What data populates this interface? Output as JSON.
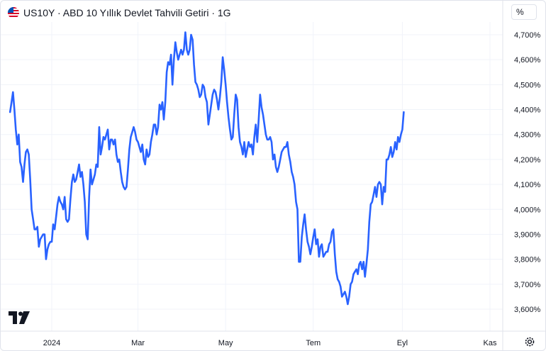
{
  "header": {
    "title": "US10Y · ABD 10 Yıllık Devlet Tahvili Getiri · 1G",
    "unit_label": "%"
  },
  "colors": {
    "line": "#2962ff",
    "grid": "#f0f3fa",
    "axis_text": "#131722"
  },
  "icons": {
    "flag": "us-flag-icon",
    "logo": "tradingview-logo-icon",
    "settings": "gear-icon"
  },
  "chart_data": {
    "type": "line",
    "title": "US10Y · ABD 10 Yıllık Devlet Tahvili Getiri · 1G",
    "ylabel": "%",
    "ylim": [
      3.55,
      4.75
    ],
    "y_ticks": [
      "4,700%",
      "4,600%",
      "4,500%",
      "4,400%",
      "4,300%",
      "4,200%",
      "4,100%",
      "4,000%",
      "3,900%",
      "3,800%",
      "3,700%",
      "3,600%"
    ],
    "x_ticks": [
      {
        "label": "2024",
        "day": 0
      },
      {
        "label": "Mar",
        "day": 60
      },
      {
        "label": "May",
        "day": 121
      },
      {
        "label": "Tem",
        "day": 182
      },
      {
        "label": "Eyl",
        "day": 244
      },
      {
        "label": "Kas",
        "day": 305
      }
    ],
    "grid": true,
    "series": [
      {
        "values": [
          [
            -29,
            4.39
          ],
          [
            -28,
            4.43
          ],
          [
            -27,
            4.47
          ],
          [
            -26,
            4.4
          ],
          [
            -25,
            4.32
          ],
          [
            -24,
            4.26
          ],
          [
            -23,
            4.3
          ],
          [
            -22,
            4.19
          ],
          [
            -21,
            4.17
          ],
          [
            -20,
            4.11
          ],
          [
            -19,
            4.18
          ],
          [
            -18,
            4.23
          ],
          [
            -17,
            4.24
          ],
          [
            -16,
            4.22
          ],
          [
            -15,
            4.12
          ],
          [
            -14,
            4.0
          ],
          [
            -13,
            3.96
          ],
          [
            -12,
            3.92
          ],
          [
            -11,
            3.92
          ],
          [
            -10,
            3.93
          ],
          [
            -9,
            3.85
          ],
          [
            -8,
            3.88
          ],
          [
            -7,
            3.89
          ],
          [
            -6,
            3.9
          ],
          [
            -5,
            3.9
          ],
          [
            -4,
            3.8
          ],
          [
            -3,
            3.84
          ],
          [
            -2,
            3.86
          ],
          [
            -1,
            3.87
          ],
          [
            0,
            3.87
          ],
          [
            1,
            3.94
          ],
          [
            2,
            3.92
          ],
          [
            3,
            3.97
          ],
          [
            4,
            4.02
          ],
          [
            5,
            4.05
          ],
          [
            6,
            4.03
          ],
          [
            7,
            4.02
          ],
          [
            8,
            4.0
          ],
          [
            9,
            4.05
          ],
          [
            10,
            3.96
          ],
          [
            11,
            3.95
          ],
          [
            12,
            3.96
          ],
          [
            13,
            4.04
          ],
          [
            14,
            4.11
          ],
          [
            15,
            4.14
          ],
          [
            16,
            4.11
          ],
          [
            17,
            4.12
          ],
          [
            18,
            4.15
          ],
          [
            19,
            4.18
          ],
          [
            20,
            4.13
          ],
          [
            21,
            4.15
          ],
          [
            22,
            4.1
          ],
          [
            23,
            4.03
          ],
          [
            24,
            3.9
          ],
          [
            25,
            3.88
          ],
          [
            26,
            4.05
          ],
          [
            27,
            4.16
          ],
          [
            28,
            4.1
          ],
          [
            29,
            4.12
          ],
          [
            30,
            4.14
          ],
          [
            31,
            4.18
          ],
          [
            32,
            4.17
          ],
          [
            33,
            4.33
          ],
          [
            34,
            4.22
          ],
          [
            35,
            4.25
          ],
          [
            36,
            4.29
          ],
          [
            37,
            4.28
          ],
          [
            38,
            4.3
          ],
          [
            39,
            4.32
          ],
          [
            40,
            4.24
          ],
          [
            41,
            4.28
          ],
          [
            42,
            4.28
          ],
          [
            43,
            4.26
          ],
          [
            44,
            4.28
          ],
          [
            45,
            4.22
          ],
          [
            46,
            4.19
          ],
          [
            47,
            4.2
          ],
          [
            48,
            4.15
          ],
          [
            49,
            4.11
          ],
          [
            50,
            4.09
          ],
          [
            51,
            4.08
          ],
          [
            52,
            4.09
          ],
          [
            53,
            4.16
          ],
          [
            54,
            4.24
          ],
          [
            55,
            4.29
          ],
          [
            56,
            4.31
          ],
          [
            57,
            4.33
          ],
          [
            58,
            4.31
          ],
          [
            59,
            4.28
          ],
          [
            60,
            4.27
          ],
          [
            61,
            4.25
          ],
          [
            62,
            4.23
          ],
          [
            63,
            4.26
          ],
          [
            64,
            4.2
          ],
          [
            65,
            4.18
          ],
          [
            66,
            4.24
          ],
          [
            67,
            4.21
          ],
          [
            68,
            4.22
          ],
          [
            69,
            4.27
          ],
          [
            70,
            4.3
          ],
          [
            71,
            4.34
          ],
          [
            72,
            4.34
          ],
          [
            73,
            4.3
          ],
          [
            74,
            4.33
          ],
          [
            75,
            4.42
          ],
          [
            76,
            4.4
          ],
          [
            77,
            4.43
          ],
          [
            78,
            4.36
          ],
          [
            79,
            4.43
          ],
          [
            80,
            4.55
          ],
          [
            81,
            4.59
          ],
          [
            82,
            4.58
          ],
          [
            83,
            4.62
          ],
          [
            84,
            4.5
          ],
          [
            85,
            4.6
          ],
          [
            86,
            4.67
          ],
          [
            87,
            4.63
          ],
          [
            88,
            4.6
          ],
          [
            89,
            4.62
          ],
          [
            90,
            4.64
          ],
          [
            91,
            4.62
          ],
          [
            92,
            4.64
          ],
          [
            93,
            4.71
          ],
          [
            94,
            4.64
          ],
          [
            95,
            4.62
          ],
          [
            96,
            4.64
          ],
          [
            97,
            4.7
          ],
          [
            98,
            4.68
          ],
          [
            99,
            4.58
          ],
          [
            100,
            4.51
          ],
          [
            101,
            4.5
          ],
          [
            102,
            4.48
          ],
          [
            103,
            4.45
          ],
          [
            104,
            4.46
          ],
          [
            105,
            4.5
          ],
          [
            106,
            4.49
          ],
          [
            107,
            4.45
          ],
          [
            108,
            4.43
          ],
          [
            109,
            4.34
          ],
          [
            110,
            4.38
          ],
          [
            111,
            4.42
          ],
          [
            112,
            4.46
          ],
          [
            113,
            4.48
          ],
          [
            114,
            4.47
          ],
          [
            115,
            4.44
          ],
          [
            116,
            4.4
          ],
          [
            117,
            4.45
          ],
          [
            118,
            4.51
          ],
          [
            119,
            4.61
          ],
          [
            120,
            4.56
          ],
          [
            121,
            4.5
          ],
          [
            122,
            4.43
          ],
          [
            123,
            4.37
          ],
          [
            124,
            4.32
          ],
          [
            125,
            4.28
          ],
          [
            126,
            4.29
          ],
          [
            127,
            4.38
          ],
          [
            128,
            4.46
          ],
          [
            129,
            4.44
          ],
          [
            130,
            4.33
          ],
          [
            131,
            4.27
          ],
          [
            132,
            4.25
          ],
          [
            133,
            4.22
          ],
          [
            134,
            4.27
          ],
          [
            135,
            4.21
          ],
          [
            136,
            4.24
          ],
          [
            137,
            4.27
          ],
          [
            138,
            4.25
          ],
          [
            139,
            4.26
          ],
          [
            140,
            4.22
          ],
          [
            141,
            4.29
          ],
          [
            142,
            4.34
          ],
          [
            143,
            4.27
          ],
          [
            144,
            4.36
          ],
          [
            145,
            4.46
          ],
          [
            146,
            4.41
          ],
          [
            147,
            4.38
          ],
          [
            148,
            4.34
          ],
          [
            149,
            4.3
          ],
          [
            150,
            4.28
          ],
          [
            151,
            4.28
          ],
          [
            152,
            4.29
          ],
          [
            153,
            4.27
          ],
          [
            154,
            4.2
          ],
          [
            155,
            4.22
          ],
          [
            156,
            4.17
          ],
          [
            157,
            4.15
          ],
          [
            158,
            4.17
          ],
          [
            159,
            4.2
          ],
          [
            160,
            4.23
          ],
          [
            161,
            4.24
          ],
          [
            162,
            4.25
          ],
          [
            163,
            4.25
          ],
          [
            164,
            4.27
          ],
          [
            165,
            4.22
          ],
          [
            166,
            4.19
          ],
          [
            167,
            4.15
          ],
          [
            168,
            4.13
          ],
          [
            169,
            4.1
          ],
          [
            170,
            4.03
          ],
          [
            171,
            4.0
          ],
          [
            172,
            3.79
          ],
          [
            173,
            3.79
          ],
          [
            174,
            3.89
          ],
          [
            175,
            3.94
          ],
          [
            176,
            3.98
          ],
          [
            177,
            3.92
          ],
          [
            178,
            3.87
          ],
          [
            179,
            3.85
          ],
          [
            180,
            3.82
          ],
          [
            181,
            3.85
          ],
          [
            182,
            3.89
          ],
          [
            183,
            3.92
          ],
          [
            184,
            3.86
          ],
          [
            185,
            3.88
          ],
          [
            186,
            3.81
          ],
          [
            187,
            3.85
          ],
          [
            188,
            3.86
          ],
          [
            189,
            3.81
          ],
          [
            190,
            3.82
          ],
          [
            191,
            3.83
          ],
          [
            192,
            3.83
          ],
          [
            193,
            3.86
          ],
          [
            194,
            3.87
          ],
          [
            195,
            3.91
          ],
          [
            196,
            3.92
          ],
          [
            197,
            3.82
          ],
          [
            198,
            3.75
          ],
          [
            199,
            3.72
          ],
          [
            200,
            3.71
          ],
          [
            201,
            3.69
          ],
          [
            202,
            3.65
          ],
          [
            203,
            3.66
          ],
          [
            204,
            3.67
          ],
          [
            205,
            3.65
          ],
          [
            206,
            3.62
          ],
          [
            207,
            3.65
          ],
          [
            208,
            3.7
          ],
          [
            209,
            3.71
          ],
          [
            210,
            3.74
          ],
          [
            211,
            3.75
          ],
          [
            212,
            3.76
          ],
          [
            213,
            3.74
          ],
          [
            214,
            3.78
          ],
          [
            215,
            3.79
          ],
          [
            216,
            3.76
          ],
          [
            217,
            3.79
          ],
          [
            218,
            3.73
          ],
          [
            219,
            3.78
          ],
          [
            220,
            3.84
          ],
          [
            221,
            3.95
          ],
          [
            222,
            4.02
          ],
          [
            223,
            4.03
          ],
          [
            224,
            4.06
          ],
          [
            225,
            4.09
          ],
          [
            226,
            4.05
          ],
          [
            227,
            4.1
          ],
          [
            228,
            4.11
          ],
          [
            229,
            4.1
          ],
          [
            230,
            4.02
          ],
          [
            231,
            4.09
          ],
          [
            232,
            4.07
          ],
          [
            233,
            4.2
          ],
          [
            234,
            4.2
          ],
          [
            235,
            4.22
          ],
          [
            236,
            4.25
          ],
          [
            237,
            4.21
          ],
          [
            238,
            4.23
          ],
          [
            239,
            4.27
          ],
          [
            240,
            4.24
          ],
          [
            241,
            4.29
          ],
          [
            242,
            4.27
          ],
          [
            243,
            4.3
          ],
          [
            244,
            4.32
          ],
          [
            245,
            4.39
          ]
        ]
      }
    ]
  }
}
